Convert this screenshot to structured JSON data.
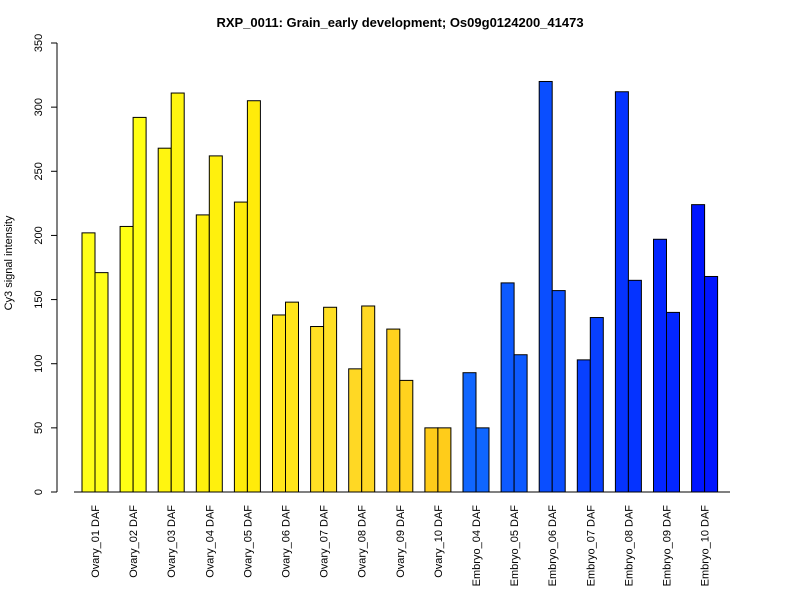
{
  "chart_data": {
    "type": "bar",
    "title": "RXP_0011: Grain_early development; Os09g0124200_41473",
    "xlabel": "",
    "ylabel": "Cy3 signal intensity",
    "ylim": [
      0,
      350
    ],
    "yticks": [
      0,
      50,
      100,
      150,
      200,
      250,
      300,
      350
    ],
    "categories": [
      "Ovary_01 DAF",
      "Ovary_02 DAF",
      "Ovary_03 DAF",
      "Ovary_04 DAF",
      "Ovary_05 DAF",
      "Ovary_06 DAF",
      "Ovary_07 DAF",
      "Ovary_08 DAF",
      "Ovary_09 DAF",
      "Ovary_10 DAF",
      "Embryo_04 DAF",
      "Embryo_05 DAF",
      "Embryo_06 DAF",
      "Embryo_07 DAF",
      "Embryo_08 DAF",
      "Embryo_09 DAF",
      "Embryo_10 DAF"
    ],
    "series": [
      {
        "values": [
          202,
          207,
          268,
          216,
          226,
          138,
          129,
          96,
          127,
          50,
          93,
          163,
          320,
          103,
          312,
          197,
          224
        ]
      },
      {
        "values": [
          171,
          292,
          311,
          262,
          305,
          148,
          144,
          145,
          87,
          50,
          50,
          107,
          157,
          136,
          165,
          140,
          168
        ]
      }
    ],
    "colors": [
      "#FFFF19",
      "#FFFF14",
      "#FFF510",
      "#FFF00D",
      "#FFEB0A",
      "#FFE51A",
      "#FFDF24",
      "#FFD824",
      "#FFD21E",
      "#FFCC1A",
      "#1066FF",
      "#0D5AFF",
      "#0A4EFF",
      "#0840FF",
      "#0533FF",
      "#0326FF",
      "#0015FF"
    ],
    "grid": false,
    "legend": "none"
  }
}
